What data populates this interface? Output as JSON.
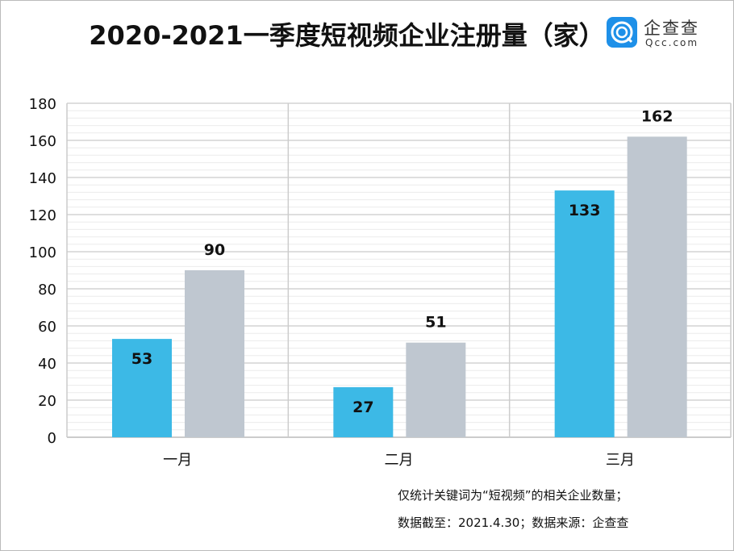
{
  "chart_data": {
    "type": "bar",
    "title": "2020-2021一季度短视频企业注册量（家）",
    "categories": [
      "一月",
      "二月",
      "三月"
    ],
    "series": [
      {
        "values": [
          53,
          27,
          133
        ],
        "color": "#3cb9e6"
      },
      {
        "values": [
          90,
          51,
          162
        ],
        "color": "#bfc7d0"
      }
    ],
    "ylim": [
      0,
      180
    ],
    "yticks": [
      0,
      20,
      40,
      60,
      80,
      100,
      120,
      140,
      160,
      180
    ],
    "grid": true,
    "legend": "none"
  },
  "logo": {
    "cn": "企查查",
    "en": "Qcc.com"
  },
  "notes": [
    "仅统计关键词为“短视频”的相关企业数量；",
    "数据截至：2021.4.30；数据来源：企查查"
  ]
}
